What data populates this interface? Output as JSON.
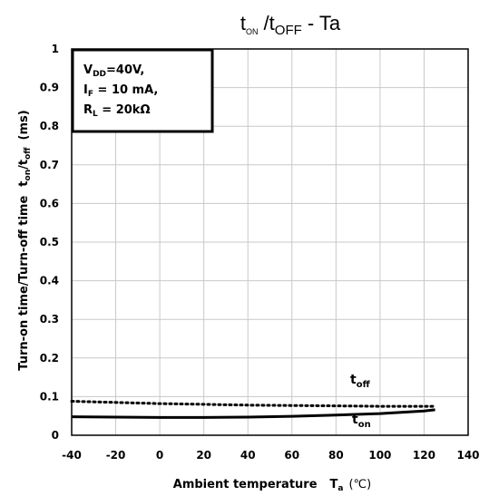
{
  "chart_data": {
    "type": "line",
    "title": {
      "base1": "t",
      "sub1": "ON",
      "mid": " /t",
      "sub2": "OFF",
      "tail": " - Ta"
    },
    "xlabel": {
      "text": "Ambient temperature",
      "sym": "T",
      "sub": "a",
      "unit": "(℃)"
    },
    "ylabel": {
      "text": "Turn-on time/Turn-off time",
      "sym1": "t",
      "sub1": "on",
      "slash": "/t",
      "sub2": "off",
      "unit": "(ms)"
    },
    "xlim": [
      -40,
      140
    ],
    "ylim": [
      0,
      1
    ],
    "xticks": [
      "-40",
      "-20",
      "0",
      "20",
      "40",
      "60",
      "80",
      "100",
      "120",
      "140"
    ],
    "xtick_values": [
      -40,
      -20,
      0,
      20,
      40,
      60,
      80,
      100,
      120,
      140
    ],
    "yticks": [
      "0",
      "0.1",
      "0.2",
      "0.3",
      "0.4",
      "0.5",
      "0.6",
      "0.7",
      "0.8",
      "0.9",
      "1"
    ],
    "ytick_values": [
      0,
      0.1,
      0.2,
      0.3,
      0.4,
      0.5,
      0.6,
      0.7,
      0.8,
      0.9,
      1
    ],
    "grid": true,
    "conditions": {
      "line1": {
        "sym": "V",
        "sub": "DD",
        "rest": "=40V,"
      },
      "line2": {
        "sym": "I",
        "sub": "F",
        "rest": " = 10 mA,"
      },
      "line3": {
        "sym": "R",
        "sub": "L",
        "rest": " = 20kΩ"
      }
    },
    "series": [
      {
        "label": {
          "sym": "t",
          "sub": "off"
        },
        "style": "dotted",
        "x": [
          -40,
          -20,
          0,
          20,
          40,
          60,
          80,
          100,
          120,
          125
        ],
        "y": [
          0.088,
          0.085,
          0.082,
          0.08,
          0.078,
          0.077,
          0.076,
          0.075,
          0.075,
          0.075
        ]
      },
      {
        "label": {
          "sym": "t",
          "sub": "on"
        },
        "style": "solid",
        "x": [
          -40,
          -20,
          0,
          20,
          40,
          60,
          80,
          100,
          120,
          125
        ],
        "y": [
          0.048,
          0.047,
          0.046,
          0.046,
          0.047,
          0.049,
          0.052,
          0.056,
          0.063,
          0.066
        ]
      }
    ],
    "colors": {
      "line": "#000000",
      "grid": "#c8c8c8"
    }
  }
}
